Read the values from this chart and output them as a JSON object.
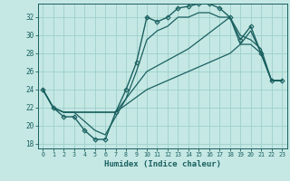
{
  "title": "",
  "xlabel": "Humidex (Indice chaleur)",
  "xlim": [
    -0.5,
    23.5
  ],
  "ylim": [
    17.5,
    33.5
  ],
  "xticks": [
    0,
    1,
    2,
    3,
    4,
    5,
    6,
    7,
    8,
    9,
    10,
    11,
    12,
    13,
    14,
    15,
    16,
    17,
    18,
    19,
    20,
    21,
    22,
    23
  ],
  "yticks": [
    18,
    20,
    22,
    24,
    26,
    28,
    30,
    32
  ],
  "bg_color": "#c5e8e4",
  "grid_color": "#9ecfca",
  "line_color": "#1a6060",
  "series": [
    {
      "x": [
        0,
        1,
        2,
        3,
        4,
        5,
        6,
        7,
        8,
        9,
        10,
        11,
        12,
        13,
        14,
        15,
        16,
        17,
        18,
        19,
        20,
        21,
        22,
        23
      ],
      "y": [
        24,
        22,
        21,
        21,
        19.5,
        18.5,
        18.5,
        21.5,
        24,
        27,
        32,
        31.5,
        32,
        33,
        33.2,
        33.5,
        33.5,
        33,
        32,
        29.5,
        31,
        28,
        25,
        25
      ],
      "marker": "D",
      "markersize": 2.5,
      "linewidth": 1.0
    },
    {
      "x": [
        0,
        1,
        2,
        3,
        4,
        5,
        6,
        7,
        8,
        9,
        10,
        11,
        12,
        13,
        14,
        15,
        16,
        17,
        18,
        19,
        20,
        21,
        22,
        23
      ],
      "y": [
        24,
        22,
        21.5,
        21.5,
        20.5,
        19.5,
        19,
        21,
        23,
        26,
        29.5,
        30.5,
        31,
        32,
        32,
        32.5,
        32.5,
        32,
        32,
        29,
        29,
        28,
        25,
        25
      ],
      "marker": null,
      "markersize": 0,
      "linewidth": 0.9
    },
    {
      "x": [
        0,
        1,
        2,
        3,
        6,
        7,
        10,
        14,
        18,
        19,
        20,
        21,
        22,
        23
      ],
      "y": [
        24,
        22,
        21.5,
        21.5,
        21.5,
        21.5,
        26,
        28.5,
        32,
        30,
        29.5,
        28.5,
        25,
        25
      ],
      "marker": null,
      "markersize": 0,
      "linewidth": 0.9
    },
    {
      "x": [
        0,
        1,
        2,
        3,
        6,
        7,
        10,
        14,
        18,
        19,
        20,
        21,
        22,
        23
      ],
      "y": [
        24,
        22,
        21.5,
        21.5,
        21.5,
        21.5,
        24,
        26,
        28,
        29,
        30.5,
        28,
        25,
        25
      ],
      "marker": null,
      "markersize": 0,
      "linewidth": 0.9
    }
  ]
}
